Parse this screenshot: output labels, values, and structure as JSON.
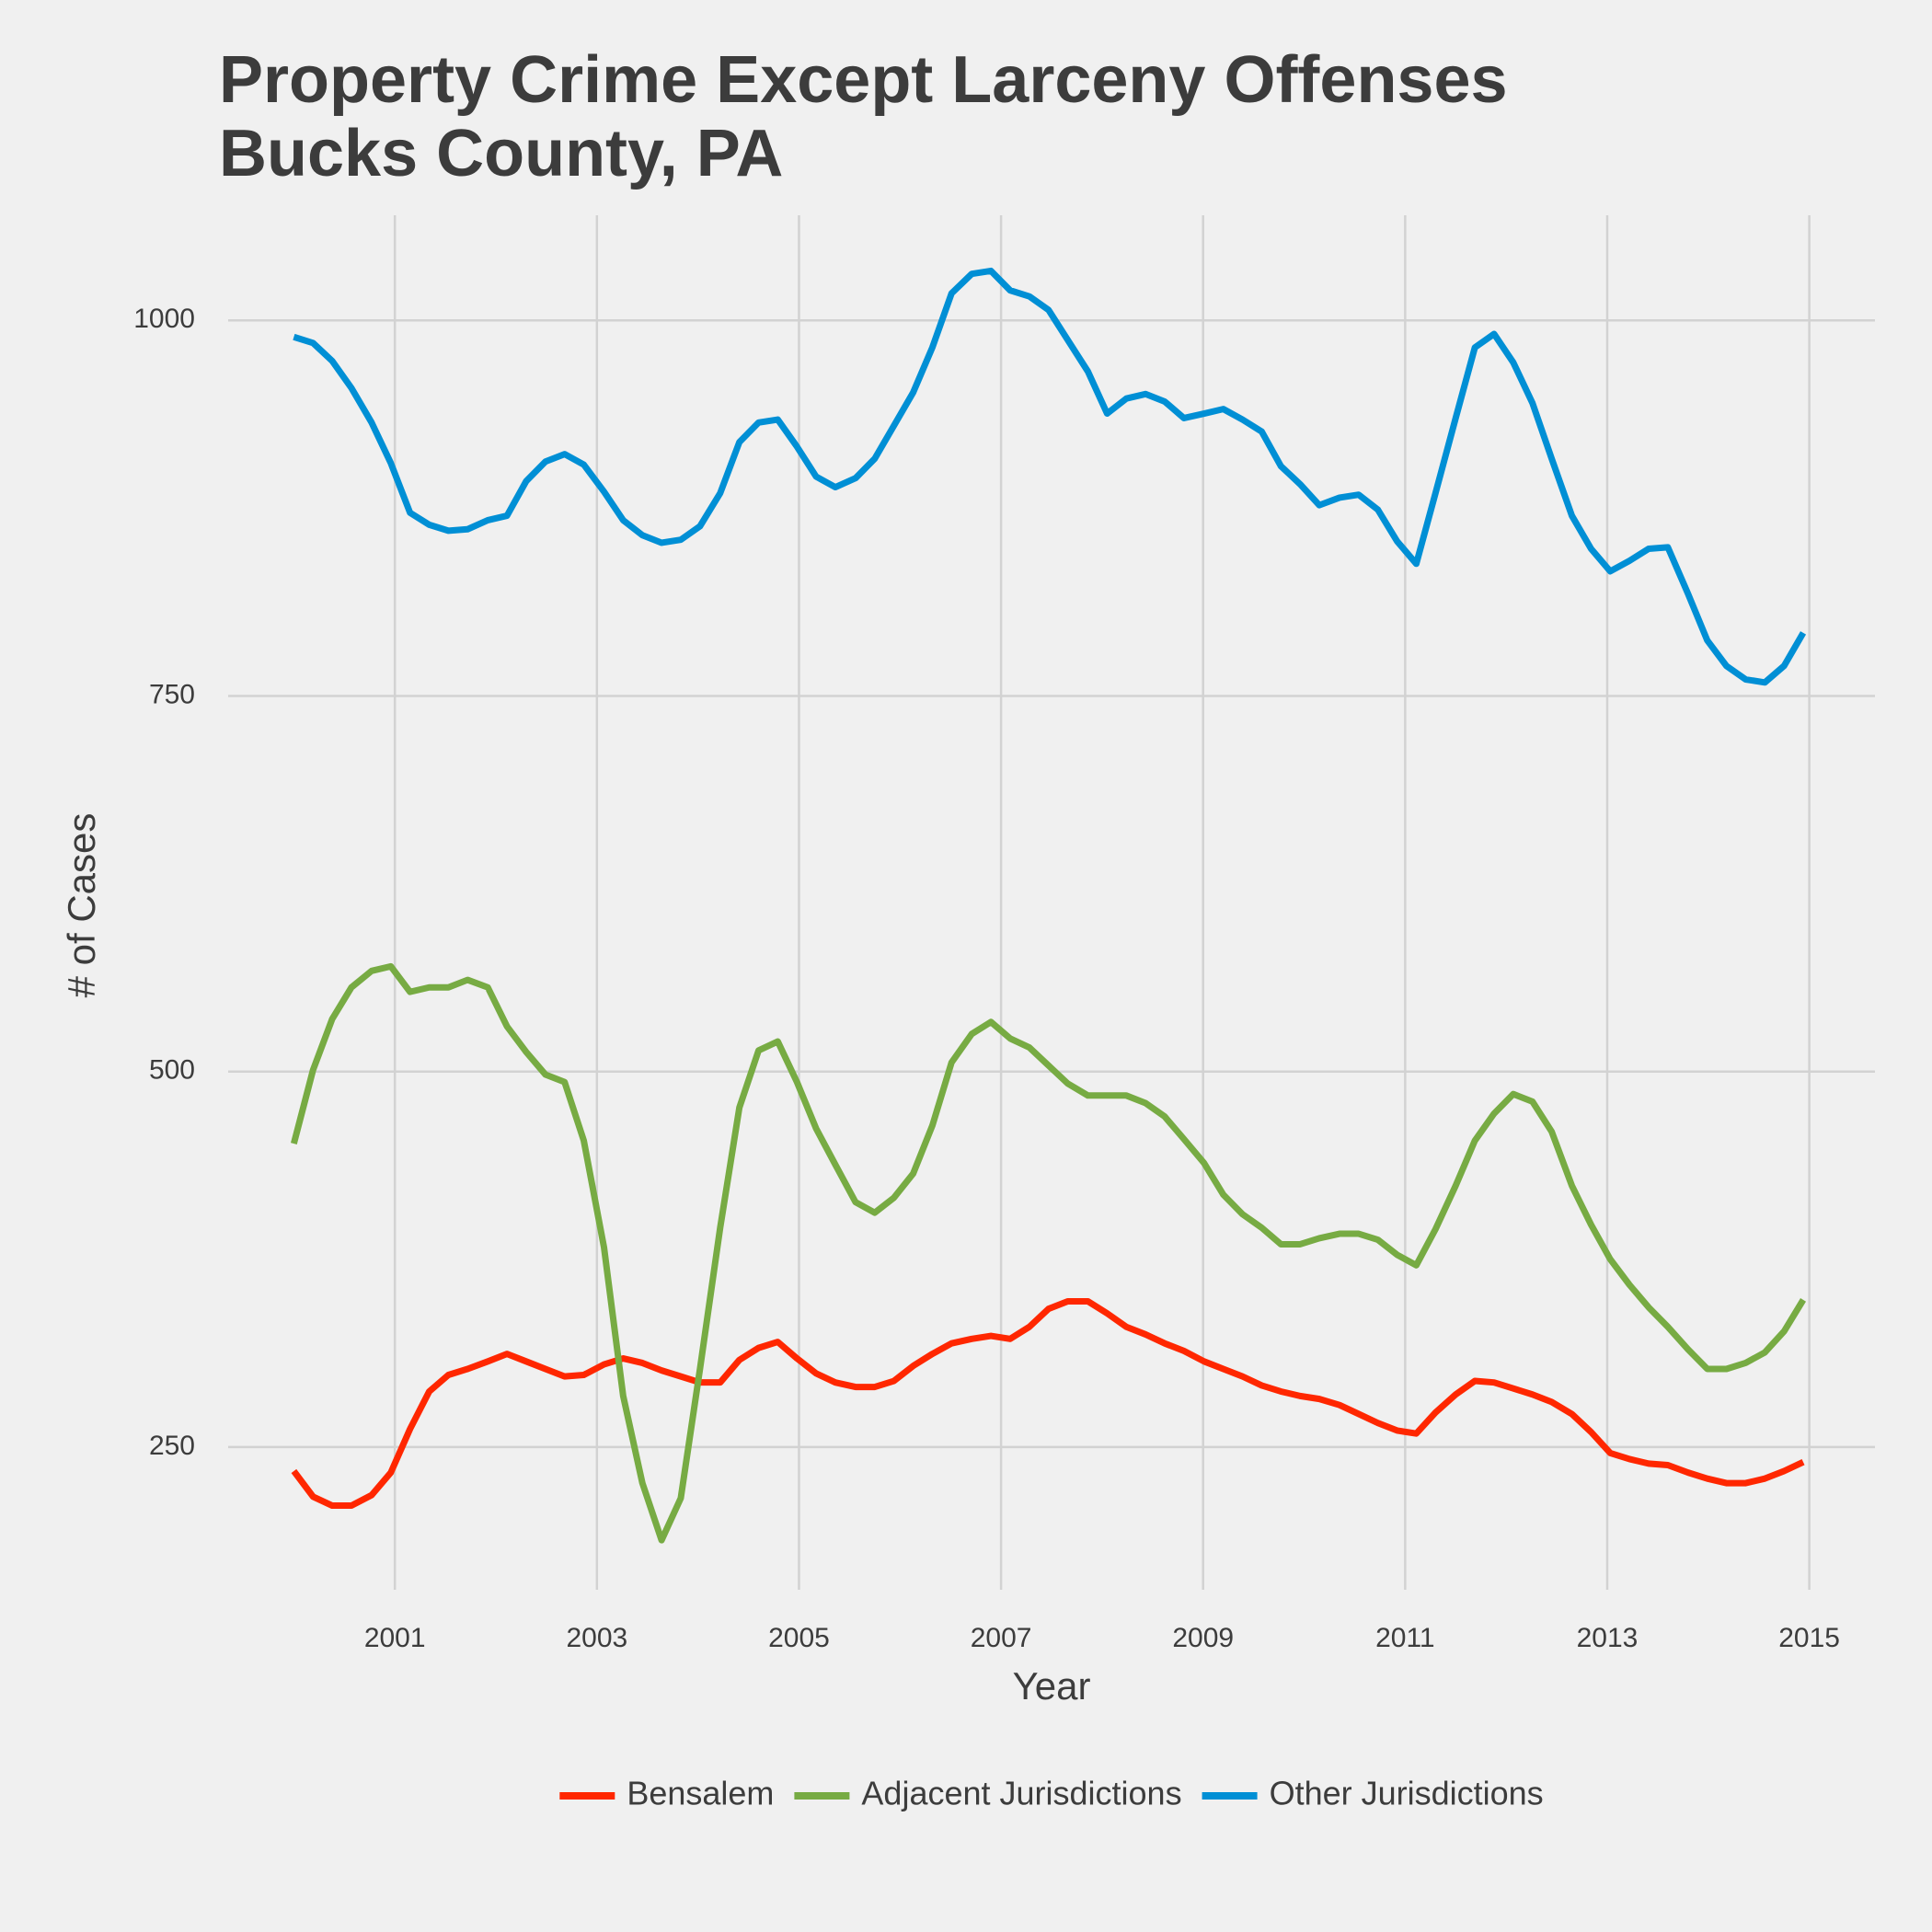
{
  "chart_data": {
    "type": "line",
    "title": [
      "Property Crime Except Larceny Offenses",
      "Bucks County, PA"
    ],
    "x_label": "Year",
    "y_label": "# of Cases",
    "x": [
      2000.0,
      2000.19,
      2000.38,
      2000.57,
      2000.77,
      2000.96,
      2001.15,
      2001.34,
      2001.53,
      2001.72,
      2001.92,
      2002.11,
      2002.3,
      2002.49,
      2002.68,
      2002.87,
      2003.07,
      2003.26,
      2003.45,
      2003.64,
      2003.83,
      2004.02,
      2004.22,
      2004.41,
      2004.6,
      2004.79,
      2004.98,
      2005.17,
      2005.36,
      2005.56,
      2005.75,
      2005.94,
      2006.13,
      2006.32,
      2006.51,
      2006.71,
      2006.9,
      2007.09,
      2007.28,
      2007.47,
      2007.66,
      2007.86,
      2008.05,
      2008.24,
      2008.43,
      2008.62,
      2008.81,
      2009.01,
      2009.2,
      2009.39,
      2009.58,
      2009.77,
      2009.96,
      2010.15,
      2010.35,
      2010.54,
      2010.73,
      2010.92,
      2011.11,
      2011.3,
      2011.5,
      2011.69,
      2011.88,
      2012.07,
      2012.26,
      2012.45,
      2012.65,
      2012.84,
      2013.03,
      2013.22,
      2013.41,
      2013.6,
      2013.8,
      2013.99,
      2014.18,
      2014.37,
      2014.56,
      2014.75,
      2014.94
    ],
    "series": [
      {
        "name": "Bensalem",
        "color": "#ff2700",
        "values": [
          234,
          217,
          211,
          211,
          218,
          233,
          262,
          287,
          298,
          302,
          307,
          312,
          307,
          302,
          297,
          298,
          305,
          309,
          306,
          301,
          297,
          293,
          293,
          308,
          316,
          320,
          309,
          299,
          293,
          290,
          290,
          294,
          304,
          312,
          319,
          322,
          324,
          322,
          330,
          342,
          347,
          347,
          339,
          330,
          325,
          319,
          314,
          307,
          302,
          297,
          291,
          287,
          284,
          282,
          278,
          272,
          266,
          261,
          259,
          273,
          285,
          294,
          293,
          289,
          285,
          280,
          272,
          260,
          246,
          242,
          239,
          238,
          233,
          229,
          226,
          226,
          229,
          234,
          240
        ]
      },
      {
        "name": "Adjacent Jurisdictions",
        "color": "#77ab43",
        "values": [
          452,
          501,
          535,
          556,
          567,
          570,
          553,
          556,
          556,
          561,
          556,
          530,
          513,
          498,
          493,
          454,
          383,
          284,
          226,
          188,
          216,
          302,
          396,
          476,
          514,
          520,
          493,
          462,
          438,
          413,
          406,
          416,
          432,
          464,
          506,
          525,
          533,
          522,
          516,
          504,
          492,
          484,
          484,
          484,
          479,
          470,
          455,
          439,
          418,
          405,
          396,
          385,
          385,
          389,
          392,
          392,
          388,
          378,
          371,
          395,
          424,
          454,
          472,
          485,
          480,
          460,
          424,
          398,
          375,
          358,
          343,
          330,
          315,
          302,
          302,
          306,
          313,
          327,
          348
        ]
      },
      {
        "name": "Other Jurisdictions",
        "color": "#008fd5",
        "values": [
          989,
          985,
          973,
          955,
          932,
          905,
          872,
          864,
          860,
          861,
          867,
          870,
          893,
          906,
          911,
          904,
          886,
          867,
          857,
          852,
          854,
          863,
          885,
          919,
          932,
          934,
          916,
          896,
          889,
          895,
          908,
          930,
          952,
          982,
          1018,
          1031,
          1033,
          1020,
          1016,
          1007,
          987,
          966,
          938,
          948,
          951,
          946,
          935,
          938,
          941,
          934,
          926,
          903,
          891,
          877,
          882,
          884,
          874,
          853,
          838,
          885,
          935,
          982,
          991,
          972,
          945,
          908,
          870,
          848,
          833,
          840,
          848,
          849,
          818,
          787,
          770,
          761,
          759,
          770,
          792
        ]
      }
    ],
    "xlim": [
      1999.35,
      2015.65
    ],
    "ylim": [
      155,
      1070
    ],
    "xticks": [
      2001,
      2003,
      2005,
      2007,
      2009,
      2011,
      2013,
      2015
    ],
    "yticks": [
      250,
      500,
      750,
      1000
    ],
    "grid": true,
    "legend": "bottom"
  }
}
